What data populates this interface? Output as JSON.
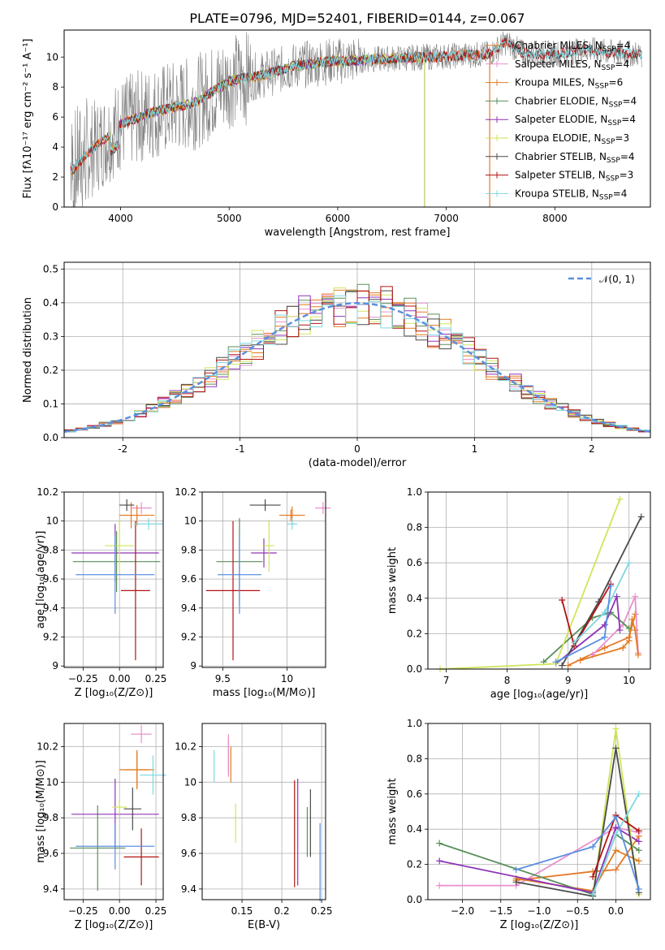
{
  "colors": [
    "#e6792a",
    "#e98fcd",
    "#e07b1f",
    "#5a8f5a",
    "#8f34b8",
    "#cfe55a",
    "#4a4a4a",
    "#b31212",
    "#7fd8e0"
  ],
  "extra_colors": {
    "blue": "#5b8fe0",
    "normal": "#5b8fe0"
  },
  "chart_data": [
    {
      "type": "line",
      "title": "PLATE=0796, MJD=52401, FIBERID=0144, z=0.067",
      "xlabel": "wavelength [Angstrom, rest frame]",
      "ylabel": "Flux [fλ10⁻¹⁷ erg cm⁻² s⁻¹ A⁻¹]",
      "xlim": [
        3480,
        8880
      ],
      "ylim": [
        0,
        11.8
      ],
      "xticks": [
        4000,
        5000,
        6000,
        7000,
        8000
      ],
      "yticks": [
        0,
        2,
        4,
        6,
        8,
        10
      ],
      "grid": false,
      "legend_position": "right",
      "data_spectrum_color": "#808080",
      "continuum": {
        "x": [
          3560,
          3700,
          3850,
          4000,
          4200,
          4400,
          4700,
          5000,
          5300,
          5600,
          5900,
          6200,
          6500,
          6800,
          7100,
          7400,
          7550,
          7700,
          7900,
          8100,
          8300,
          8500,
          8800
        ],
        "y": [
          2.5,
          3.6,
          4.5,
          5.5,
          6.1,
          6.5,
          7.0,
          8.4,
          8.8,
          9.4,
          9.7,
          9.8,
          9.9,
          10.0,
          10.1,
          10.2,
          11.0,
          10.3,
          10.2,
          10.3,
          10.5,
          10.3,
          10.2
        ]
      },
      "series": [
        {
          "name": "Chabrier MILES, N_SSP=4",
          "label_main": "Chabrier MILES, N",
          "label_sub": "SSP",
          "label_tail": "=4",
          "range": [
            3540,
            7400
          ]
        },
        {
          "name": "Salpeter MILES, N_SSP=4",
          "label_main": "Salpeter MILES, N",
          "label_sub": "SSP",
          "label_tail": "=4",
          "range": [
            3540,
            7400
          ]
        },
        {
          "name": "Kroupa MILES, N_SSP=6",
          "label_main": "Kroupa MILES, N",
          "label_sub": "SSP",
          "label_tail": "=6",
          "range": [
            3540,
            7400
          ]
        },
        {
          "name": "Chabrier ELODIE, N_SSP=4",
          "label_main": "Chabrier ELODIE, N",
          "label_sub": "SSP",
          "label_tail": "=4",
          "range": [
            3900,
            6800
          ]
        },
        {
          "name": "Salpeter ELODIE, N_SSP=4",
          "label_main": "Salpeter ELODIE, N",
          "label_sub": "SSP",
          "label_tail": "=4",
          "range": [
            3900,
            6800
          ]
        },
        {
          "name": "Kroupa ELODIE, N_SSP=3",
          "label_main": "Kroupa ELODIE, N",
          "label_sub": "SSP",
          "label_tail": "=3",
          "range": [
            3900,
            6800
          ]
        },
        {
          "name": "Chabrier STELIB, N_SSP=4",
          "label_main": "Chabrier STELIB, N",
          "label_sub": "SSP",
          "label_tail": "=4",
          "range": [
            3540,
            8800
          ]
        },
        {
          "name": "Salpeter STELIB, N_SSP=3",
          "label_main": "Salpeter STELIB, N",
          "label_sub": "SSP",
          "label_tail": "=3",
          "range": [
            3540,
            8800
          ]
        },
        {
          "name": "Kroupa STELIB, N_SSP=4",
          "label_main": "Kroupa STELIB, N",
          "label_sub": "SSP",
          "label_tail": "=4",
          "range": [
            3540,
            8800
          ]
        }
      ]
    },
    {
      "type": "histogram",
      "xlabel": "(data-model)/error",
      "ylabel": "Normed distribution",
      "xlim": [
        -2.5,
        2.5
      ],
      "ylim": [
        0,
        0.52
      ],
      "xticks": [
        -2,
        -1,
        0,
        1,
        2
      ],
      "yticks": [
        0.0,
        0.1,
        0.2,
        0.3,
        0.4,
        0.5
      ],
      "grid": true,
      "legend": "𝒩(0, 1)",
      "legend_position": "top-right",
      "bin_width": 0.1
    },
    {
      "type": "errorbar",
      "xlabel": "Z [log₁₀(Z/Z⊙)]",
      "ylabel": "age  [log₁₀(age/yr)]",
      "xlim": [
        -0.38,
        0.3
      ],
      "ylim": [
        8.99,
        10.2
      ],
      "xticks": [
        -0.25,
        0.0,
        0.25
      ],
      "yticks": [
        9.0,
        9.2,
        9.4,
        9.6,
        9.8,
        10.0,
        10.2
      ],
      "xtick_labels": [
        "−0.25",
        "0.00",
        "0.25"
      ],
      "points": [
        {
          "x": 0.08,
          "y": 10.04,
          "xerr": 0.07,
          "yerr": 0.09
        },
        {
          "x": 0.15,
          "y": 10.09,
          "xerr": 0.07,
          "yerr": 0.04
        },
        {
          "x": 0.12,
          "y": 10.04,
          "xerr": 0.12,
          "yerr": 0.07
        },
        {
          "x": -0.02,
          "y": 9.72,
          "xerr": 0.3,
          "yerr": 0.21
        },
        {
          "x": -0.03,
          "y": 9.78,
          "xerr": 0.3,
          "yerr": 0.2
        },
        {
          "x": 0.0,
          "y": 9.83,
          "xerr": 0.1,
          "yerr": 0.18
        },
        {
          "x": 0.05,
          "y": 10.11,
          "xerr": 0.05,
          "yerr": 0.04
        },
        {
          "x": 0.11,
          "y": 9.52,
          "xerr": 0.1,
          "yerr": 0.48
        },
        {
          "x": 0.2,
          "y": 9.98,
          "xerr": 0.1,
          "yerr": 0.04
        }
      ],
      "extra_points": [
        {
          "x": -0.03,
          "y": 9.63,
          "xerr": 0.27,
          "yerr": 0.27
        }
      ]
    },
    {
      "type": "errorbar",
      "xlabel": "mass [log₁₀(M/M⊙)]",
      "ylabel": "",
      "xlim": [
        9.34,
        10.3
      ],
      "ylim": [
        8.99,
        10.2
      ],
      "xticks": [
        9.5,
        10.0
      ],
      "yticks": [
        9.0,
        9.2,
        9.4,
        9.6,
        9.8,
        10.0,
        10.2
      ],
      "points": [
        {
          "x": 10.03,
          "y": 10.04,
          "xerr": 0.08,
          "yerr": 0.04
        },
        {
          "x": 10.28,
          "y": 10.09,
          "xerr": 0.06,
          "yerr": 0.04
        },
        {
          "x": 10.04,
          "y": 10.04,
          "xerr": 0.1,
          "yerr": 0.06
        },
        {
          "x": 9.63,
          "y": 9.72,
          "xerr": 0.18,
          "yerr": 0.3
        },
        {
          "x": 9.82,
          "y": 9.78,
          "xerr": 0.1,
          "yerr": 0.1
        },
        {
          "x": 9.86,
          "y": 9.83,
          "xerr": 0.04,
          "yerr": 0.18
        },
        {
          "x": 9.83,
          "y": 10.11,
          "xerr": 0.12,
          "yerr": 0.04
        },
        {
          "x": 9.58,
          "y": 9.52,
          "xerr": 0.21,
          "yerr": 0.48
        },
        {
          "x": 10.04,
          "y": 9.98,
          "xerr": 0.04,
          "yerr": 0.04
        }
      ],
      "extra_points": [
        {
          "x": 9.63,
          "y": 9.63,
          "xerr": 0.17,
          "yerr": 0.27
        }
      ]
    },
    {
      "type": "line",
      "xlabel": "age  [log₁₀(age/yr)]",
      "ylabel": "mass weight",
      "xlim": [
        6.7,
        10.35
      ],
      "ylim": [
        0,
        1.0
      ],
      "xticks": [
        7,
        8,
        9,
        10
      ],
      "yticks": [
        0.0,
        0.2,
        0.4,
        0.6,
        0.8,
        1.0
      ],
      "grid": true,
      "series": [
        {
          "x": [
            9.0,
            9.6,
            10.0,
            10.1
          ],
          "y": [
            0.02,
            0.12,
            0.18,
            0.31
          ]
        },
        {
          "x": [
            9.4,
            9.9,
            10.1,
            10.15
          ],
          "y": [
            0.08,
            0.25,
            0.41,
            0.09
          ]
        },
        {
          "x": [
            9.2,
            9.9,
            10.0,
            10.05,
            10.1,
            10.15
          ],
          "y": [
            0.05,
            0.12,
            0.16,
            0.28,
            0.22,
            0.08
          ]
        },
        {
          "x": [
            8.6,
            9.4,
            9.7,
            10.0
          ],
          "y": [
            0.04,
            0.29,
            0.32,
            0.23
          ]
        },
        {
          "x": [
            8.8,
            9.6,
            9.8,
            9.85
          ],
          "y": [
            0.03,
            0.25,
            0.41,
            0.22
          ]
        },
        {
          "x": [
            6.9,
            8.8,
            9.85
          ],
          "y": [
            0.0,
            0.03,
            0.96
          ]
        },
        {
          "x": [
            8.9,
            9.5,
            10.2
          ],
          "y": [
            0.02,
            0.38,
            0.86
          ]
        },
        {
          "x": [
            8.9,
            9.1,
            9.7
          ],
          "y": [
            0.39,
            0.13,
            0.48
          ]
        },
        {
          "x": [
            9.1,
            9.6,
            10.0
          ],
          "y": [
            0.15,
            0.32,
            0.6
          ]
        }
      ],
      "extra_series": [
        {
          "x": [
            8.8,
            9.6,
            9.7
          ],
          "y": [
            0.04,
            0.18,
            0.47
          ]
        }
      ]
    },
    {
      "type": "errorbar",
      "xlabel": "Z [log₁₀(Z/Z⊙)]",
      "ylabel": "mass [log₁₀(M/M⊙)]",
      "xlim": [
        -0.38,
        0.3
      ],
      "ylim": [
        9.34,
        10.33
      ],
      "xticks": [
        -0.25,
        0.0,
        0.25
      ],
      "yticks": [
        9.4,
        9.6,
        9.8,
        10.0,
        10.2
      ],
      "xtick_labels": [
        "−0.25",
        "0.00",
        "0.25"
      ],
      "points": [
        {
          "x": 0.12,
          "y": 10.07,
          "xerr": 0.08,
          "yerr": 0.1
        },
        {
          "x": 0.15,
          "y": 10.27,
          "xerr": 0.07,
          "yerr": 0.05
        },
        {
          "x": 0.12,
          "y": 10.07,
          "xerr": 0.12,
          "yerr": 0.11
        },
        {
          "x": -0.15,
          "y": 9.63,
          "xerr": 0.19,
          "yerr": 0.24
        },
        {
          "x": -0.03,
          "y": 9.82,
          "xerr": 0.3,
          "yerr": 0.2
        },
        {
          "x": 0.0,
          "y": 9.86,
          "xerr": 0.05,
          "yerr": 0.04
        },
        {
          "x": 0.09,
          "y": 9.85,
          "xerr": 0.06,
          "yerr": 0.12
        },
        {
          "x": 0.15,
          "y": 9.58,
          "xerr": 0.12,
          "yerr": 0.16
        },
        {
          "x": 0.23,
          "y": 10.04,
          "xerr": 0.09,
          "yerr": 0.11
        }
      ],
      "extra_points": [
        {
          "x": -0.03,
          "y": 9.64,
          "xerr": 0.27,
          "yerr": 0.13
        }
      ]
    },
    {
      "type": "errorbar",
      "xlabel": "E(B-V)",
      "ylabel": "",
      "xlim": [
        0.1,
        0.255
      ],
      "ylim": [
        9.34,
        10.33
      ],
      "xticks": [
        0.15,
        0.2,
        0.25
      ],
      "yticks": [
        9.4,
        9.6,
        9.8,
        10.0,
        10.2
      ],
      "points": [
        {
          "x": 0.133,
          "y": 10.15,
          "yerr": 0.1
        },
        {
          "x": 0.133,
          "y": 10.15,
          "yerr": 0.12
        },
        {
          "x": 0.136,
          "y": 10.1,
          "yerr": 0.1
        },
        {
          "x": 0.232,
          "y": 9.72,
          "yerr": 0.14
        },
        {
          "x": 0.22,
          "y": 9.72,
          "yerr": 0.3
        },
        {
          "x": 0.142,
          "y": 9.77,
          "yerr": 0.11
        },
        {
          "x": 0.236,
          "y": 9.77,
          "yerr": 0.19
        },
        {
          "x": 0.216,
          "y": 9.71,
          "yerr": 0.3
        },
        {
          "x": 0.115,
          "y": 10.09,
          "yerr": 0.09
        }
      ],
      "extra_points": [
        {
          "x": 0.248,
          "y": 9.55,
          "yerr": 0.22
        }
      ]
    },
    {
      "type": "line",
      "xlabel": "Z [log₁₀(Z/Z⊙)]",
      "ylabel": "mass weight",
      "xlim": [
        -2.45,
        0.45
      ],
      "ylim": [
        0,
        1.0
      ],
      "xticks": [
        -2.0,
        -1.5,
        -1.0,
        -0.5,
        0.0
      ],
      "yticks": [
        0.0,
        0.2,
        0.4,
        0.6,
        0.8,
        1.0
      ],
      "xtick_labels": [
        "−2.0",
        "−1.5",
        "−1.0",
        "−0.5",
        "0.0"
      ],
      "grid": true,
      "series": [
        {
          "x": [
            -1.3,
            -0.3,
            0.0,
            0.3
          ],
          "y": [
            0.11,
            0.16,
            0.17,
            0.36
          ]
        },
        {
          "x": [
            -2.3,
            -1.3,
            0.0,
            0.3
          ],
          "y": [
            0.08,
            0.08,
            0.41,
            0.38
          ]
        },
        {
          "x": [
            -1.3,
            -0.3,
            0.0,
            0.3
          ],
          "y": [
            0.12,
            0.05,
            0.28,
            0.22
          ]
        },
        {
          "x": [
            -2.3,
            -0.3,
            0.0,
            0.3
          ],
          "y": [
            0.32,
            0.03,
            0.37,
            0.28
          ]
        },
        {
          "x": [
            -2.3,
            -0.3,
            0.0,
            0.3
          ],
          "y": [
            0.22,
            0.04,
            0.41,
            0.33
          ]
        },
        {
          "x": [
            -0.3,
            0.0,
            0.3
          ],
          "y": [
            0.02,
            0.97,
            0.03
          ]
        },
        {
          "x": [
            -1.3,
            -0.3,
            0.0,
            0.3
          ],
          "y": [
            0.1,
            0.02,
            0.86,
            0.04
          ]
        },
        {
          "x": [
            -0.3,
            0.0,
            0.3
          ],
          "y": [
            0.13,
            0.48,
            0.39
          ]
        },
        {
          "x": [
            -0.3,
            0.0,
            0.3
          ],
          "y": [
            0.03,
            0.37,
            0.6
          ]
        }
      ],
      "extra_series": [
        {
          "x": [
            -1.3,
            -0.3,
            0.0,
            0.3
          ],
          "y": [
            0.17,
            0.3,
            0.47,
            0.06
          ]
        }
      ]
    }
  ]
}
